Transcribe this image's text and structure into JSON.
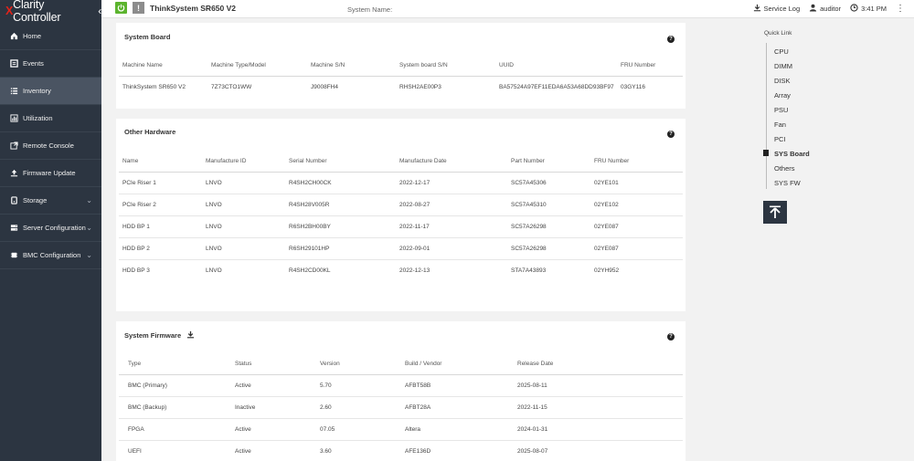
{
  "brand": {
    "x": "X",
    "rest": "Clarity Controller",
    "collapse": "‹"
  },
  "sidebar": {
    "items": [
      {
        "label": "Home",
        "icon": "home-icon"
      },
      {
        "label": "Events",
        "icon": "events-icon"
      },
      {
        "label": "Inventory",
        "icon": "inventory-icon",
        "active": true
      },
      {
        "label": "Utilization",
        "icon": "utilization-icon"
      },
      {
        "label": "Remote Console",
        "icon": "remote-console-icon"
      },
      {
        "label": "Firmware Update",
        "icon": "firmware-update-icon"
      },
      {
        "label": "Storage",
        "icon": "storage-icon",
        "expandable": true
      },
      {
        "label": "Server Configuration",
        "icon": "server-config-icon",
        "expandable": true
      },
      {
        "label": "BMC Configuration",
        "icon": "bmc-config-icon",
        "expandable": true
      }
    ]
  },
  "topbar": {
    "model": "ThinkSystem SR650 V2",
    "system_name_label": "System Name:",
    "service_log": "Service Log",
    "user": "auditor",
    "time": "3:41 PM",
    "alert_glyph": "!",
    "menu_glyph": "⋮"
  },
  "colors": {
    "sidebar_bg": "#2c3541",
    "power_green": "#5cb42e",
    "brand_red": "#e2231a"
  },
  "system_board": {
    "title": "System Board",
    "headers": [
      "Machine Name",
      "Machine Type/Model",
      "Machine S/N",
      "System board S/N",
      "UUID",
      "FRU Number"
    ],
    "rows": [
      [
        "ThinkSystem SR650 V2",
        "7Z73CTO1WW",
        "J9008FH4",
        "RHSH2AE00P3",
        "BA57524A97EF11EDA6A53A68DD93BF97",
        "03GY116"
      ]
    ]
  },
  "other_hardware": {
    "title": "Other Hardware",
    "headers": [
      "Name",
      "Manufacture ID",
      "Serial Number",
      "Manufacture Date",
      "Part Number",
      "FRU Number"
    ],
    "rows": [
      [
        "PCIe Riser 1",
        "LNVO",
        "R4SH2CH00CK",
        "2022-12-17",
        "SC57A45306",
        "02YE101"
      ],
      [
        "PCIe Riser 2",
        "LNVO",
        "R4SH28V005R",
        "2022-08-27",
        "SC57A45310",
        "02YE102"
      ],
      [
        "HDD BP 1",
        "LNVO",
        "R6SH2BH00BY",
        "2022-11-17",
        "SC57A26298",
        "02YE087"
      ],
      [
        "HDD BP 2",
        "LNVO",
        "R6SH29101HP",
        "2022-09-01",
        "SC57A26298",
        "02YE087"
      ],
      [
        "HDD BP 3",
        "LNVO",
        "R4SH2CD00KL",
        "2022-12-13",
        "STA7A43893",
        "02YH952"
      ]
    ]
  },
  "system_firmware": {
    "title": "System Firmware",
    "headers": [
      "Type",
      "Status",
      "Version",
      "Build / Vendor",
      "Release Date"
    ],
    "rows": [
      [
        "BMC (Primary)",
        "Active",
        "5.70",
        "AFBT58B",
        "2025-08-11"
      ],
      [
        "BMC (Backup)",
        "Inactive",
        "2.60",
        "AFBT28A",
        "2022-11-15"
      ],
      [
        "FPGA",
        "Active",
        "07.05",
        "Altera",
        "2024-01-31"
      ],
      [
        "UEFI",
        "Active",
        "3.60",
        "AFE136D",
        "2025-08-07"
      ]
    ]
  },
  "quick_link": {
    "title": "Quick Link",
    "items": [
      "CPU",
      "DIMM",
      "DISK",
      "Array",
      "PSU",
      "Fan",
      "PCI",
      "SYS Board",
      "Others",
      "SYS FW"
    ],
    "active": "SYS Board"
  }
}
